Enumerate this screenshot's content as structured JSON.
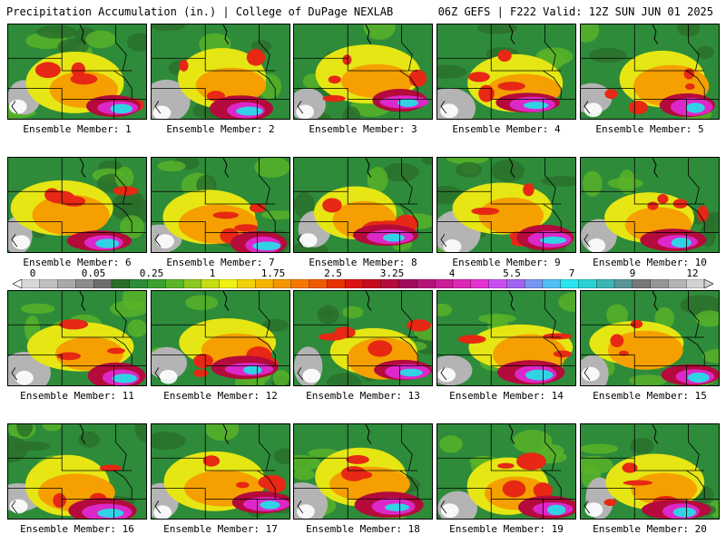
{
  "header": {
    "title_left": "Precipitation Accumulation (in.) | College of DuPage NEXLAB",
    "title_right": "06Z GEFS | F222 Valid: 12Z SUN JUN 01 2025"
  },
  "members": [
    {
      "label": "Ensemble Member: 1"
    },
    {
      "label": "Ensemble Member: 2"
    },
    {
      "label": "Ensemble Member: 3"
    },
    {
      "label": "Ensemble Member: 4"
    },
    {
      "label": "Ensemble Member: 5"
    },
    {
      "label": "Ensemble Member: 6"
    },
    {
      "label": "Ensemble Member: 7"
    },
    {
      "label": "Ensemble Member: 8"
    },
    {
      "label": "Ensemble Member: 9"
    },
    {
      "label": "Ensemble Member: 10"
    },
    {
      "label": "Ensemble Member: 11"
    },
    {
      "label": "Ensemble Member: 12"
    },
    {
      "label": "Ensemble Member: 13"
    },
    {
      "label": "Ensemble Member: 14"
    },
    {
      "label": "Ensemble Member: 15"
    },
    {
      "label": "Ensemble Member: 16"
    },
    {
      "label": "Ensemble Member: 17"
    },
    {
      "label": "Ensemble Member: 18"
    },
    {
      "label": "Ensemble Member: 19"
    },
    {
      "label": "Ensemble Member: 20"
    }
  ],
  "colorbar": {
    "labels": [
      "0",
      "0.05",
      "0.25",
      "1",
      "1.75",
      "2.5",
      "3.25",
      "4",
      "5.5",
      "7",
      "9",
      "12"
    ],
    "colors": [
      "#d8d8d8",
      "#c0c0c0",
      "#a8a8a8",
      "#8c8c8c",
      "#6e6e6e",
      "#2a6e2a",
      "#2e8b3a",
      "#3aa02e",
      "#5ab428",
      "#8cc81e",
      "#c8dc14",
      "#f0f014",
      "#f0d20a",
      "#f5b400",
      "#f59600",
      "#f57800",
      "#f05a00",
      "#e63200",
      "#dc1414",
      "#c80a1e",
      "#b40a3c",
      "#a00a5a",
      "#b41478",
      "#c81e96",
      "#dc28b4",
      "#e632d2",
      "#c850f0",
      "#a064f0",
      "#7896f0",
      "#50bef0",
      "#28e6f0",
      "#28d2d2",
      "#3cb4b4",
      "#5a9696",
      "#787878",
      "#969696",
      "#b4b4b4",
      "#d2d2d2"
    ],
    "palette": {
      "grey_lo": "#b4b4b4",
      "grey_hi": "#787878",
      "green_dark": "#2a6e2a",
      "green": "#2e8b3a",
      "green_light": "#5ab428",
      "yellow": "#e6e614",
      "orange": "#f5a000",
      "red": "#e62814",
      "maroon": "#b40a3c",
      "magenta": "#dc28c8",
      "purple": "#a064f0",
      "cyan": "#32d2e6"
    }
  }
}
